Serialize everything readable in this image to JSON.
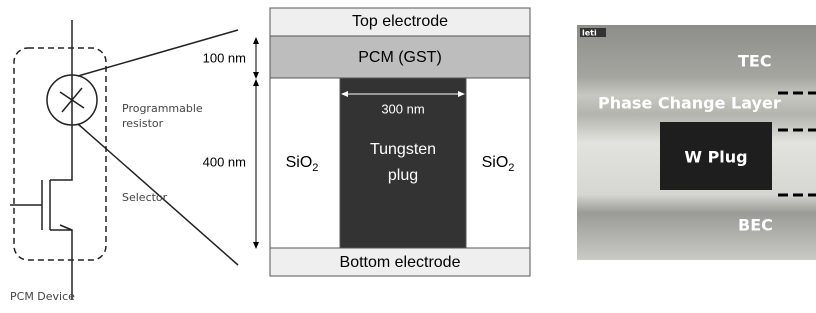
{
  "circuit": {
    "resistor_label": [
      "Programmable",
      "resistor"
    ],
    "selector_label": "Selector",
    "device_label": "PCM Device"
  },
  "stack": {
    "dimensions": {
      "pcm_thickness": "100 nm",
      "plug_height": "400 nm",
      "plug_width": "300 nm"
    },
    "layers": {
      "top": "Top electrode",
      "pcm": "PCM (GST)",
      "plug": [
        "Tungsten",
        "plug"
      ],
      "oxide_left": {
        "text": "SiO",
        "subscript": "2"
      },
      "oxide_right": {
        "text": "SiO",
        "subscript": "2"
      },
      "bottom": "Bottom electrode"
    }
  },
  "tem_image": {
    "logo": "leti",
    "labels": {
      "tec": "TEC",
      "pcl": "Phase Change Layer",
      "plug": "W Plug",
      "bec": "BEC"
    }
  }
}
